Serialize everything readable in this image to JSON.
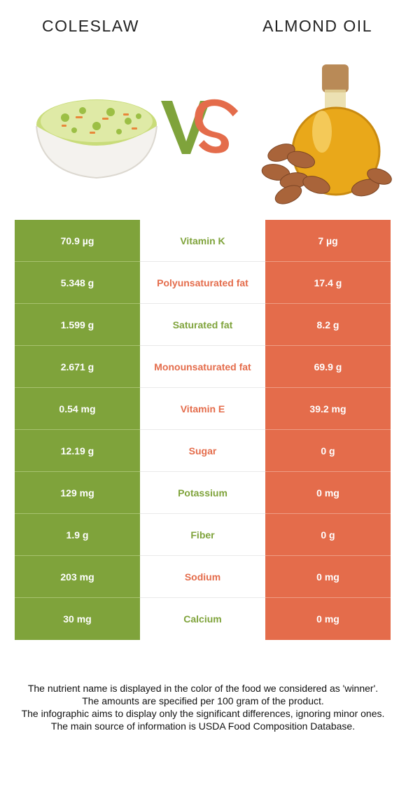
{
  "left_food": {
    "name": "COLESLAW",
    "color": "#7fa33b"
  },
  "right_food": {
    "name": "ALMOND OIL",
    "color": "#e46c4b"
  },
  "vs": {
    "v": "V",
    "s": "S"
  },
  "rows": [
    {
      "nutrient": "Vitamin K",
      "left": "70.9 µg",
      "right": "7 µg",
      "winner": "left"
    },
    {
      "nutrient": "Polyunsaturated fat",
      "left": "5.348 g",
      "right": "17.4 g",
      "winner": "right"
    },
    {
      "nutrient": "Saturated fat",
      "left": "1.599 g",
      "right": "8.2 g",
      "winner": "left"
    },
    {
      "nutrient": "Monounsaturated fat",
      "left": "2.671 g",
      "right": "69.9 g",
      "winner": "right"
    },
    {
      "nutrient": "Vitamin E",
      "left": "0.54 mg",
      "right": "39.2 mg",
      "winner": "right"
    },
    {
      "nutrient": "Sugar",
      "left": "12.19 g",
      "right": "0 g",
      "winner": "right"
    },
    {
      "nutrient": "Potassium",
      "left": "129 mg",
      "right": "0 mg",
      "winner": "left"
    },
    {
      "nutrient": "Fiber",
      "left": "1.9 g",
      "right": "0 g",
      "winner": "left"
    },
    {
      "nutrient": "Sodium",
      "left": "203 mg",
      "right": "0 mg",
      "winner": "right"
    },
    {
      "nutrient": "Calcium",
      "left": "30 mg",
      "right": "0 mg",
      "winner": "left"
    }
  ],
  "footer": [
    "The nutrient name is displayed in the color of the food we considered as 'winner'.",
    "The amounts are specified per 100 gram of the product.",
    "The infographic aims to display only the significant differences, ignoring minor ones.",
    "The main source of information is USDA Food Composition Database."
  ]
}
